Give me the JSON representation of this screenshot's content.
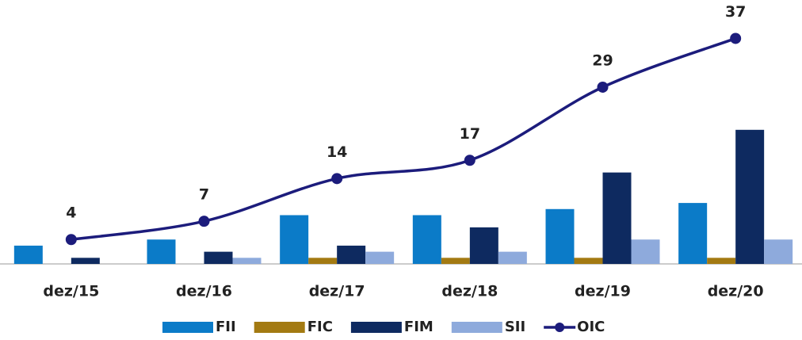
{
  "chart_data": {
    "type": "bar_line",
    "categories": [
      "dez/15",
      "dez/16",
      "dez/17",
      "dez/18",
      "dez/19",
      "dez/20"
    ],
    "series": [
      {
        "name": "FII",
        "color": "#0b7bc8",
        "values": [
          3,
          4,
          8,
          8,
          9,
          10
        ]
      },
      {
        "name": "FIC",
        "color": "#a37a12",
        "values": [
          0,
          0,
          1,
          1,
          1,
          1
        ]
      },
      {
        "name": "FIM",
        "color": "#0e2a60",
        "values": [
          1,
          2,
          3,
          6,
          15,
          22
        ]
      },
      {
        "name": "SII",
        "color": "#8eaadc",
        "values": [
          0,
          1,
          2,
          2,
          4,
          4
        ]
      },
      {
        "name": "OIC",
        "color": "#1c1c7c",
        "type": "line",
        "values": [
          4,
          7,
          14,
          17,
          29,
          37
        ]
      }
    ],
    "ylim": [
      0,
      42
    ],
    "grid": false
  }
}
